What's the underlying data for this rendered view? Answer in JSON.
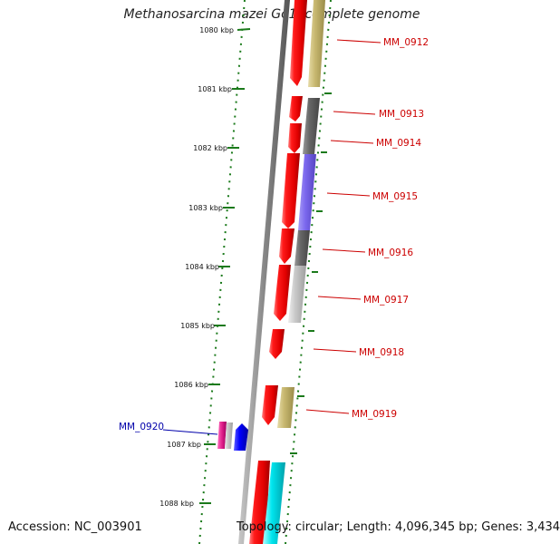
{
  "title": "Methanosarcina mazei Go1, complete genome",
  "accession": "Accession: NC_003901",
  "topology": "Topology: circular; Length: 4,096,345 bp; Genes: 3,434",
  "ruler": {
    "labels": [
      "1080 kbp",
      "1081 kbp",
      "1082 kbp",
      "1083 kbp",
      "1084 kbp",
      "1085 kbp",
      "1086 kbp",
      "1087 kbp",
      "1088 kbp"
    ],
    "color": "#1b7a1b"
  },
  "genes": [
    {
      "label": "MM_0912",
      "color": "#cc0000"
    },
    {
      "label": "MM_0913",
      "color": "#cc0000"
    },
    {
      "label": "MM_0914",
      "color": "#cc0000"
    },
    {
      "label": "MM_0915",
      "color": "#cc0000"
    },
    {
      "label": "MM_0916",
      "color": "#cc0000"
    },
    {
      "label": "MM_0917",
      "color": "#cc0000"
    },
    {
      "label": "MM_0918",
      "color": "#cc0000"
    },
    {
      "label": "MM_0919",
      "color": "#cc0000"
    },
    {
      "label": "MM_0920",
      "color": "#0000aa"
    }
  ],
  "feature_colors": {
    "cds": "#ff0000",
    "khaki": "#c8b870",
    "dark_gray": "#666666",
    "light_gray": "#c4c4c4",
    "violet": "#7b68ee",
    "blue": "#0000ff",
    "magenta": "#e0208a",
    "cyan": "#00e5ee",
    "backbone": "#8a8a8a"
  }
}
